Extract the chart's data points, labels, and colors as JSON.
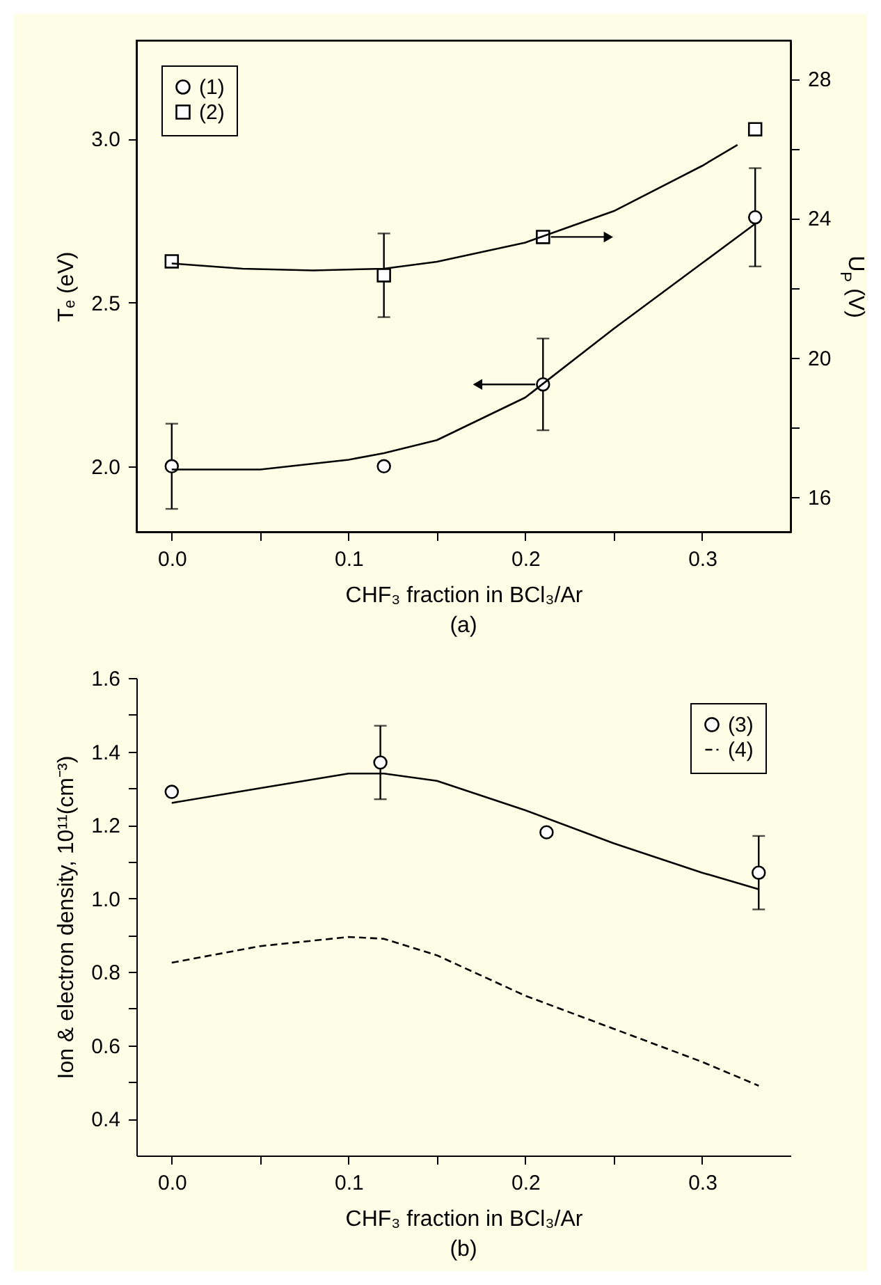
{
  "chart_data": [
    {
      "type": "scatter",
      "title": "(a)",
      "xlabel": "CHF₃ fraction in BCl₃/Ar",
      "ylabel": "Tₑ (eV)",
      "y2label": "U$_{P}$ (V)",
      "xlim": [
        -0.02,
        0.35
      ],
      "xticks": [
        {
          "value": 0,
          "label": "0.0"
        },
        {
          "value": 0.05,
          "label": null
        },
        {
          "value": 0.1,
          "label": "0.1"
        },
        {
          "value": 0.15,
          "label": null
        },
        {
          "value": 0.2,
          "label": "0.2"
        },
        {
          "value": 0.25,
          "label": null
        },
        {
          "value": 0.3,
          "label": "0.3"
        }
      ],
      "ylim": [
        1.8,
        3.3
      ],
      "yticks": [
        {
          "value": 2,
          "label": "2.0"
        },
        {
          "value": 2.5,
          "label": "2.5"
        },
        {
          "value": 3,
          "label": "3.0"
        }
      ],
      "y2lim": [
        15,
        29.1
      ],
      "y2ticks": [
        16,
        {
          "value": 18,
          "label": null
        },
        20,
        {
          "value": 22,
          "label": null
        },
        24,
        {
          "value": 26,
          "label": null
        },
        28
      ],
      "legend": "top left",
      "series": [
        {
          "name": "(1)",
          "type": "scatter",
          "marker": "circle",
          "color": "#000000",
          "x": [
            0,
            0.12,
            0.21,
            0.33
          ],
          "values": [
            2.0,
            2.0,
            2.25,
            2.76
          ],
          "errors": [
            0.13,
            null,
            0.14,
            0.15
          ]
        },
        {
          "type": "line",
          "color": "#000000",
          "x": [
            0,
            0.05,
            0.1,
            0.12,
            0.15,
            0.2,
            0.25,
            0.3,
            0.33
          ],
          "values": [
            1.99,
            1.99,
            2.02,
            2.04,
            2.08,
            2.21,
            2.42,
            2.62,
            2.74
          ]
        },
        {
          "name": "(2)",
          "type": "scatter",
          "marker": "square",
          "axis": "y2",
          "color": "#000000",
          "x": [
            0,
            0.12,
            0.21,
            0.33
          ],
          "values": [
            22.76,
            22.36,
            23.46,
            26.55
          ],
          "errors": [
            null,
            1.2,
            null,
            null
          ]
        },
        {
          "type": "line",
          "axis": "y2",
          "color": "#000000",
          "x": [
            0,
            0.04,
            0.08,
            0.12,
            0.15,
            0.2,
            0.25,
            0.3,
            0.32
          ],
          "values": [
            22.7,
            22.55,
            22.5,
            22.55,
            22.75,
            23.3,
            24.2,
            25.5,
            26.1
          ]
        }
      ]
    },
    {
      "type": "scatter",
      "title": "(b)",
      "xlabel": "CHF₃ fraction in BCl₃/Ar",
      "ylabel": "Ion & electron density, 10¹¹(cm⁻³)",
      "xlim": [
        -0.02,
        0.35
      ],
      "xticks": [
        {
          "value": 0,
          "label": "0.0"
        },
        {
          "value": 0.05,
          "label": null
        },
        {
          "value": 0.1,
          "label": "0.1"
        },
        {
          "value": 0.15,
          "label": null
        },
        {
          "value": 0.2,
          "label": "0.2"
        },
        {
          "value": 0.25,
          "label": null
        },
        {
          "value": 0.3,
          "label": "0.3"
        }
      ],
      "ylim": [
        0.3,
        1.6
      ],
      "yticks": [
        0.4,
        {
          "value": 0.5,
          "label": null
        },
        0.6,
        {
          "value": 0.7,
          "label": null
        },
        0.8,
        {
          "value": 0.9,
          "label": null
        },
        {
          "value": 1,
          "label": "1.0"
        },
        {
          "value": 1.1,
          "label": null
        },
        1.2,
        {
          "value": 1.3,
          "label": null
        },
        1.4,
        {
          "value": 1.5,
          "label": null
        },
        1.6
      ],
      "legend": "top right",
      "series": [
        {
          "name": "(3)",
          "type": "scatter",
          "marker": "circle",
          "color": "#000000",
          "x": [
            0,
            0.118,
            0.212,
            0.332
          ],
          "values": [
            1.29,
            1.37,
            1.18,
            1.07
          ],
          "errors": [
            null,
            0.1,
            null,
            0.1
          ]
        },
        {
          "type": "line",
          "color": "#000000",
          "x": [
            0,
            0.05,
            0.1,
            0.12,
            0.15,
            0.2,
            0.25,
            0.3,
            0.332
          ],
          "values": [
            1.26,
            1.3,
            1.34,
            1.34,
            1.32,
            1.24,
            1.15,
            1.07,
            1.025
          ]
        },
        {
          "name": "(4)",
          "type": "line",
          "line_style": "dashed",
          "color": "#000000",
          "x": [
            0,
            0.05,
            0.1,
            0.12,
            0.15,
            0.2,
            0.25,
            0.3,
            0.332
          ],
          "values": [
            0.825,
            0.87,
            0.895,
            0.89,
            0.845,
            0.735,
            0.645,
            0.555,
            0.49
          ]
        }
      ]
    }
  ]
}
